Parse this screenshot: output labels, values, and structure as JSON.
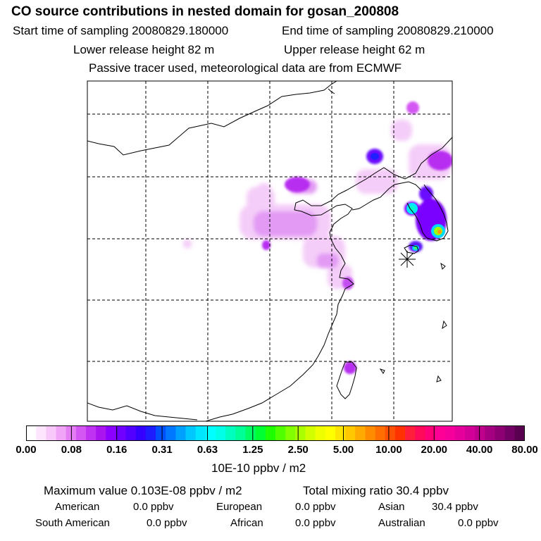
{
  "header": {
    "title": "CO  source contributions in nested domain for gosan_200808",
    "start_time": "Start time of sampling 20080829.180000",
    "end_time": "End time of sampling 20080829.210000",
    "lower_height": "Lower release height   82 m",
    "upper_height": "Upper release height   62 m",
    "tracer_note": "Passive tracer used, meteorological data are from ECMWF"
  },
  "colorbar": {
    "ticks": [
      "0.00",
      "0.08",
      "0.16",
      "0.31",
      "0.63",
      "1.25",
      "2.50",
      "5.00",
      "10.00",
      "20.00",
      "40.00",
      "80.00"
    ],
    "colors": [
      "#ffffff",
      "#fde6fd",
      "#f7c8f9",
      "#f0a5f7",
      "#e57ef5",
      "#d457f3",
      "#c032f1",
      "#aa14ef",
      "#8c00ff",
      "#7000ff",
      "#5200ff",
      "#3400ff",
      "#1c1cff",
      "#0050ff",
      "#0078ff",
      "#00a0ff",
      "#00c8ff",
      "#00e6ff",
      "#00ffff",
      "#00ffe6",
      "#00ffbe",
      "#00ff96",
      "#00ff64",
      "#00ff32",
      "#1eff00",
      "#50ff00",
      "#82ff00",
      "#aaff00",
      "#d2ff00",
      "#f0ff00",
      "#ffff00",
      "#ffe600",
      "#ffc800",
      "#ffaa00",
      "#ff8c00",
      "#ff6e00",
      "#ff5000",
      "#ff3200",
      "#ff1e3c",
      "#ff0a5a",
      "#ff0078",
      "#ff0096",
      "#f5009b",
      "#e6009b",
      "#d20096",
      "#be008c",
      "#a50082",
      "#8c0073",
      "#730064",
      "#5a0050"
    ],
    "unit_label": "10E-10 ppbv / m2"
  },
  "summary": {
    "max_value": "Maximum value  0.103E-08 ppbv / m2",
    "total_mixing": "Total mixing ratio       30.4 ppbv",
    "american_label": "American",
    "american_value": "0.0 ppbv",
    "european_label": "European",
    "european_value": "0.0 ppbv",
    "asian_label": "Asian",
    "asian_value": "30.4 ppbv",
    "south_american_label": "South American",
    "south_american_value": "0.0 ppbv",
    "african_label": "African",
    "african_value": "0.0 ppbv",
    "australian_label": "Australian",
    "australian_value": "0.0 ppbv"
  }
}
